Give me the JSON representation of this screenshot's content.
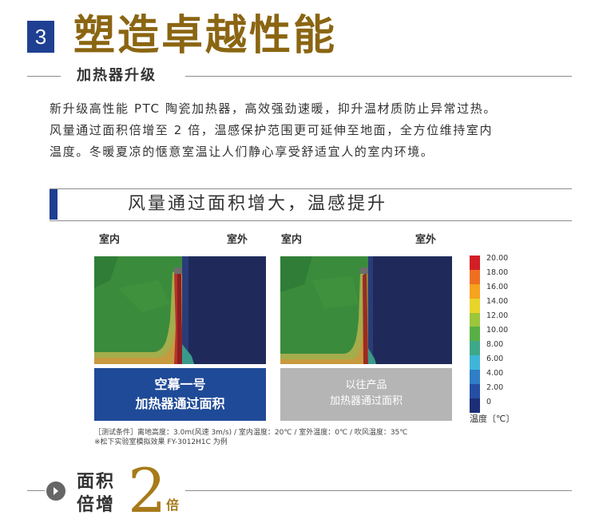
{
  "header": {
    "number": "3",
    "title": "塑造卓越性能",
    "subtitle": "加热器升级"
  },
  "intro": {
    "lines": [
      "新升级高性能 PTC 陶瓷加热器，高效强劲速暖，抑升温材质防止异常过热。",
      "风量通过面积倍增至 2 倍，温感保护范围更可延伸至地面，全方位维持室内",
      "温度。冬暖夏凉的惬意室温让人们静心享受舒适宜人的室内环境。"
    ]
  },
  "section": {
    "title": "风量通过面积增大，温感提升"
  },
  "panels": [
    {
      "indoor": "室内",
      "outdoor": "室外",
      "caption_line1": "空幕一号",
      "caption_line2": "加热器通过面积"
    },
    {
      "indoor": "室内",
      "outdoor": "室外",
      "caption_line1": "以往产品",
      "caption_line2": "加热器通过面积"
    }
  ],
  "legend": {
    "values": [
      "20.00",
      "18.00",
      "16.00",
      "14.00",
      "12.00",
      "10.00",
      "8.00",
      "6.00",
      "4.00",
      "2.00",
      "0"
    ],
    "colors": [
      "#d21f26",
      "#ef6f22",
      "#f6a31d",
      "#e8d42a",
      "#9cc63b",
      "#58b045",
      "#3ea88b",
      "#3fb6d8",
      "#2e7fc7",
      "#244fa4",
      "#1c2e78"
    ],
    "label": "温度〔℃〕"
  },
  "notes": {
    "line1": "［测试条件］离地高度：3.0m(风速 3m/s) / 室内温度：20℃ / 室外温度：0℃ / 吹风温度：35℃",
    "line2": "※松下实验室模拟效果 FY-3012H1C 为例"
  },
  "footer": {
    "text_line1": "面积",
    "text_line2": "倍增",
    "big_number": "2",
    "unit": "倍"
  },
  "colors": {
    "title_gold": "#8a6512",
    "brand_blue": "#1f3f92",
    "sim_green": "#3a8a3a",
    "sim_navy": "#1f2a5a"
  }
}
